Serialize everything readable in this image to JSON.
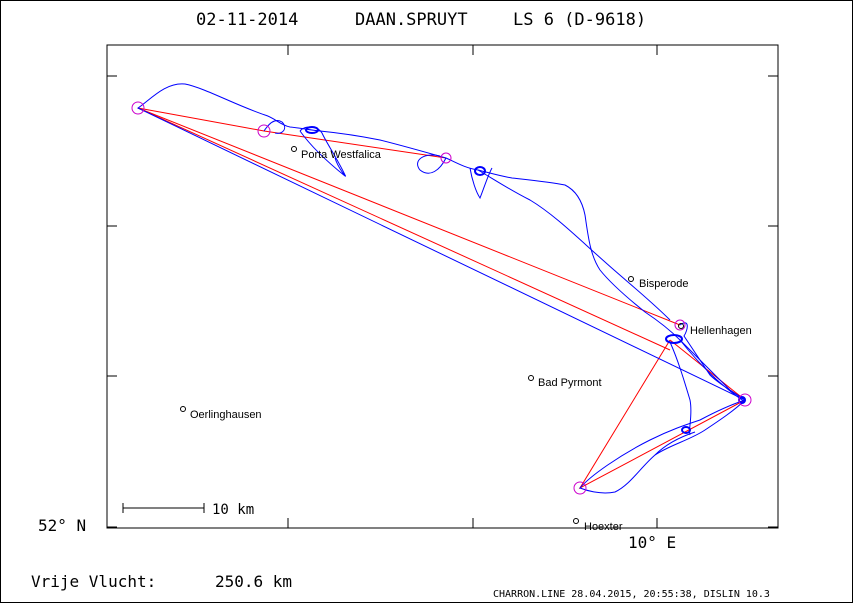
{
  "header": {
    "date": "02-11-2014",
    "pilot": "DAAN.SPRUYT",
    "glider": "LS 6 (D-9618)"
  },
  "axes": {
    "lat_label": "52° N",
    "lon_label": "10° E"
  },
  "scale_bar": {
    "label": "10 km"
  },
  "places": [
    {
      "name": "Porta Westfalica"
    },
    {
      "name": "Bisperode"
    },
    {
      "name": "Hellenhagen"
    },
    {
      "name": "Bad Pyrmont"
    },
    {
      "name": "Oerlinghausen"
    },
    {
      "name": "Hoexter"
    }
  ],
  "distance": {
    "label": "Vrije Vlucht:",
    "value": "250.6 km"
  },
  "footer": {
    "credit": "CHARRON.LINE 28.04.2015, 20:55:38, DISLIN 10.3"
  },
  "colors": {
    "track": "#0000ff",
    "task": "#ff0000",
    "turnpoint": "#cc00cc"
  }
}
